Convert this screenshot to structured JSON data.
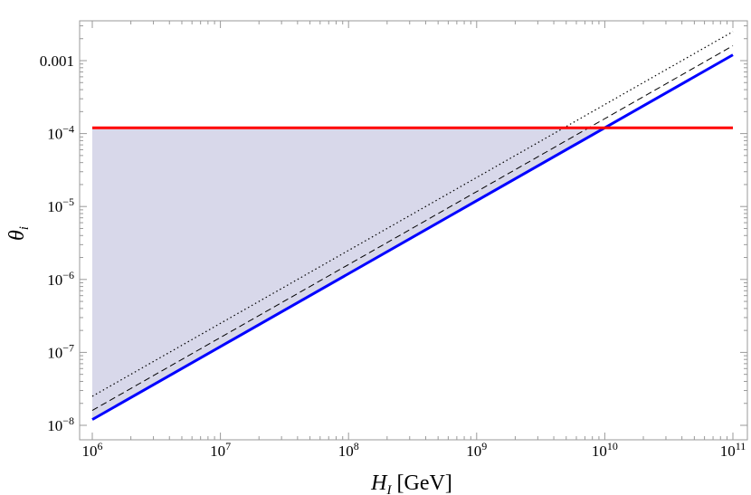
{
  "chart_data": {
    "type": "line",
    "title": "",
    "xlabel": "H_I [GeV]",
    "ylabel": "θ_i",
    "xscale": "log",
    "yscale": "log",
    "xlim": [
      1000000.0,
      100000000000.0
    ],
    "ylim": [
      1e-08,
      0.004
    ],
    "x_ticks": [
      {
        "value": 1000000.0,
        "base": "10",
        "exp": "6"
      },
      {
        "value": 10000000.0,
        "base": "10",
        "exp": "7"
      },
      {
        "value": 100000000.0,
        "base": "10",
        "exp": "8"
      },
      {
        "value": 1000000000.0,
        "base": "10",
        "exp": "9"
      },
      {
        "value": 10000000000.0,
        "base": "10",
        "exp": "10"
      },
      {
        "value": 100000000000.0,
        "base": "10",
        "exp": "11"
      }
    ],
    "y_ticks": [
      {
        "value": 1e-08,
        "base": "10",
        "exp": "−8",
        "text": ""
      },
      {
        "value": 1e-07,
        "base": "10",
        "exp": "−7",
        "text": ""
      },
      {
        "value": 1e-06,
        "base": "10",
        "exp": "−6",
        "text": ""
      },
      {
        "value": 1e-05,
        "base": "10",
        "exp": "−5",
        "text": ""
      },
      {
        "value": 0.0001,
        "base": "10",
        "exp": "−4",
        "text": ""
      },
      {
        "value": 0.001,
        "base": "",
        "exp": "",
        "text": "0.001"
      }
    ],
    "series": [
      {
        "style": "solid",
        "color": "#0000ff",
        "x": [
          1000000.0,
          100000000000.0
        ],
        "y": [
          1.2e-08,
          0.0012
        ]
      },
      {
        "style": "dashed",
        "color": "#000000",
        "x": [
          1000000.0,
          100000000000.0
        ],
        "y": [
          1.6e-08,
          0.0016
        ]
      },
      {
        "style": "dotted",
        "color": "#000000",
        "x": [
          1000000.0,
          100000000000.0
        ],
        "y": [
          2.5e-08,
          0.0025
        ]
      },
      {
        "style": "solid",
        "color": "#ff0000",
        "x": [
          1000000.0,
          100000000000.0
        ],
        "y": [
          0.00012,
          0.00012
        ]
      }
    ],
    "shaded_region": {
      "color": "#d8d8ea",
      "polygon": [
        [
          1000000.0,
          1.2e-08
        ],
        [
          1000000.0,
          0.00012
        ],
        [
          10000000000.0,
          0.00012
        ]
      ]
    },
    "grid": false,
    "legend": "none"
  }
}
